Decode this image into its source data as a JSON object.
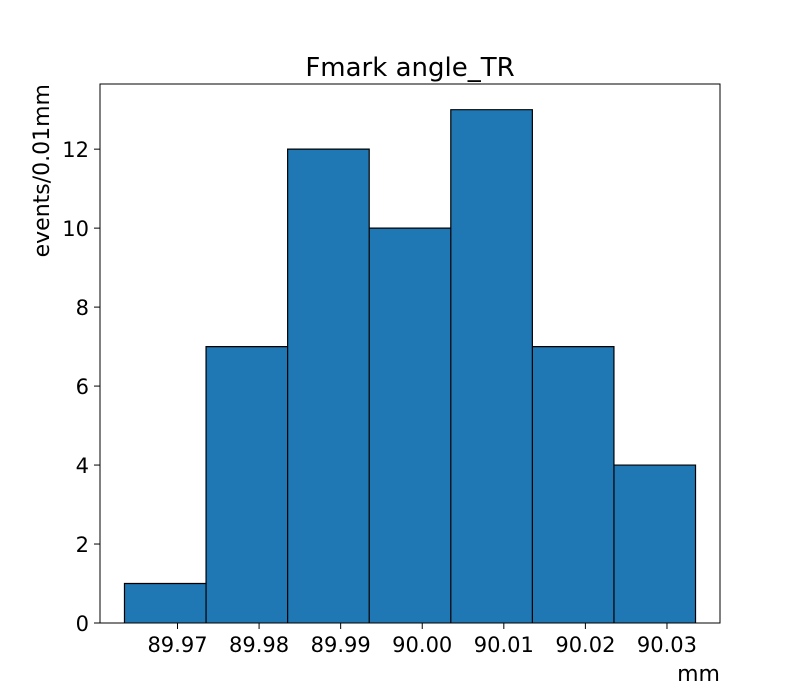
{
  "chart_data": {
    "type": "bar",
    "title": "Fmark angle_TR",
    "xlabel": "mm",
    "ylabel": "events/0.01mm",
    "bin_edges": [
      89.9635,
      89.9735,
      89.9835,
      89.9935,
      90.0035,
      90.0135,
      90.0235,
      90.0335
    ],
    "values": [
      1,
      7,
      12,
      10,
      13,
      7,
      4
    ],
    "xlim": [
      89.9605,
      90.0365
    ],
    "ylim": [
      0,
      13.65
    ],
    "xticks": [
      89.97,
      89.98,
      89.99,
      90.0,
      90.01,
      90.02,
      90.03
    ],
    "xtick_labels": [
      "89.97",
      "89.98",
      "89.99",
      "90.00",
      "90.01",
      "90.02",
      "90.03"
    ],
    "yticks": [
      0,
      2,
      4,
      6,
      8,
      10,
      12
    ],
    "ytick_labels": [
      "0",
      "2",
      "4",
      "6",
      "8",
      "10",
      "12"
    ],
    "bar_color": "#1f77b4",
    "edge_color": "#000000",
    "grid": false,
    "legend": "none"
  }
}
